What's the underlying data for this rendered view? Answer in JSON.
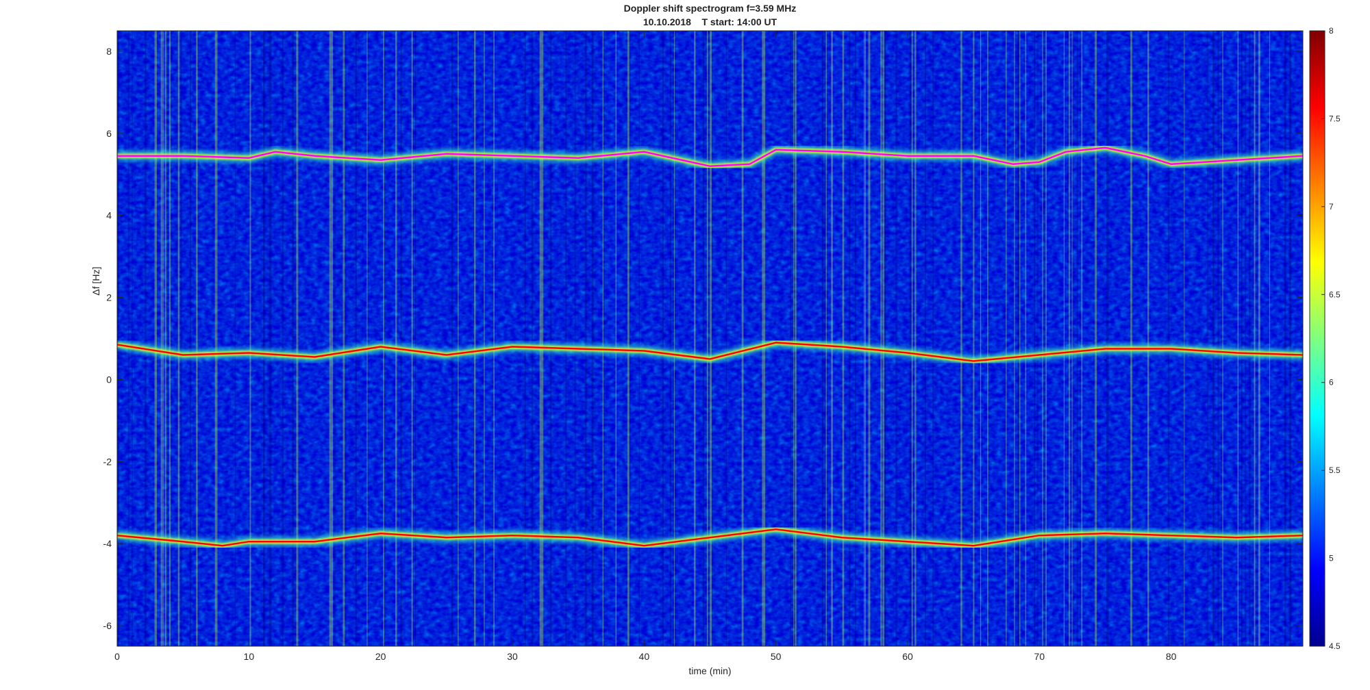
{
  "chart_data": {
    "type": "heatmap",
    "title": "Doppler shift spectrogram f=3.59 MHz",
    "subtitle": "10.10.2018    T start: 14:00 UT",
    "xlabel": "time (min)",
    "ylabel": "Δf [Hz]",
    "xlim": [
      0,
      90
    ],
    "ylim": [
      -6.5,
      8.5
    ],
    "xticks": [
      0,
      10,
      20,
      30,
      40,
      50,
      60,
      70,
      80
    ],
    "yticks": [
      -6,
      -4,
      -2,
      0,
      2,
      4,
      6,
      8
    ],
    "colorbar": {
      "colormap": "jet",
      "clim": [
        4.5,
        8
      ],
      "ticks": [
        4.5,
        5,
        5.5,
        6,
        6.5,
        7,
        7.5,
        8
      ],
      "position": "right"
    },
    "background_level": 4.8,
    "noise_level_range": [
      4.5,
      6.5
    ],
    "traces": [
      {
        "color": "#ff00ff",
        "peak_level": 6.8,
        "time": [
          0,
          5,
          10,
          12,
          15,
          20,
          25,
          30,
          35,
          40,
          45,
          48,
          50,
          55,
          60,
          65,
          68,
          70,
          72,
          75,
          78,
          80,
          85,
          90
        ],
        "freq": [
          5.45,
          5.45,
          5.4,
          5.55,
          5.45,
          5.35,
          5.5,
          5.45,
          5.4,
          5.55,
          5.2,
          5.25,
          5.6,
          5.55,
          5.45,
          5.45,
          5.25,
          5.3,
          5.55,
          5.65,
          5.45,
          5.25,
          5.35,
          5.45
        ]
      },
      {
        "color": "#ff0000",
        "peak_level": 7.8,
        "time": [
          0,
          5,
          10,
          15,
          20,
          25,
          30,
          35,
          40,
          45,
          50,
          55,
          60,
          65,
          70,
          75,
          80,
          85,
          90
        ],
        "freq": [
          0.85,
          0.6,
          0.65,
          0.55,
          0.8,
          0.6,
          0.8,
          0.75,
          0.7,
          0.5,
          0.9,
          0.8,
          0.65,
          0.45,
          0.6,
          0.75,
          0.75,
          0.65,
          0.6
        ]
      },
      {
        "color": "#ff0000",
        "peak_level": 7.8,
        "time": [
          0,
          5,
          8,
          10,
          15,
          20,
          25,
          30,
          35,
          40,
          45,
          50,
          55,
          60,
          65,
          70,
          75,
          80,
          85,
          90
        ],
        "freq": [
          -3.8,
          -3.95,
          -4.05,
          -3.95,
          -3.95,
          -3.75,
          -3.85,
          -3.8,
          -3.85,
          -4.05,
          -3.85,
          -3.65,
          -3.85,
          -3.95,
          -4.05,
          -3.8,
          -3.75,
          -3.8,
          -3.85,
          -3.8
        ]
      }
    ]
  }
}
